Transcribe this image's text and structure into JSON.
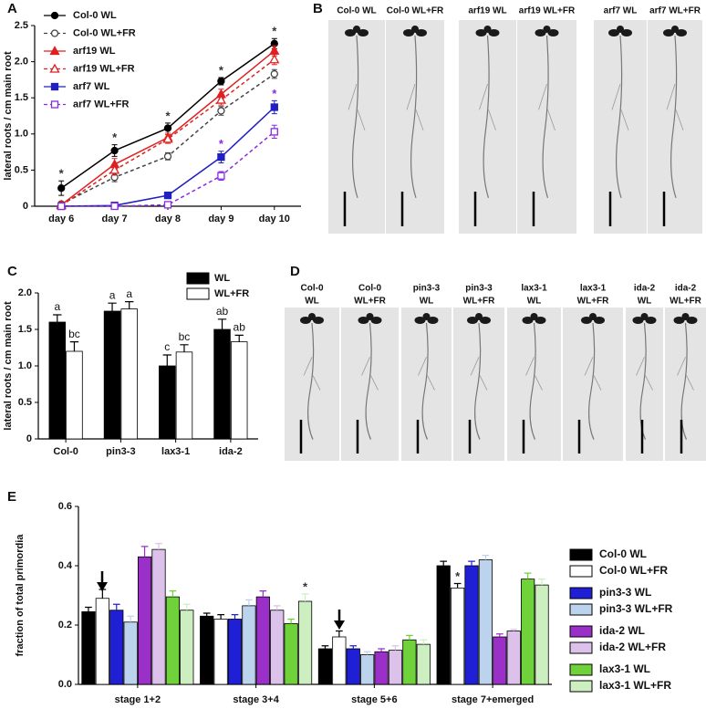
{
  "panel_labels": [
    "A",
    "B",
    "C",
    "D",
    "E"
  ],
  "photo_labels_B": [
    "Col-0 WL",
    "Col-0 WL+FR",
    "arf19 WL",
    "arf19 WL+FR",
    "arf7 WL",
    "arf7 WL+FR"
  ],
  "photo_labels_D": [
    [
      "Col-0",
      "WL"
    ],
    [
      "Col-0",
      "WL+FR"
    ],
    [
      "pin3-3",
      "WL"
    ],
    [
      "pin3-3",
      "WL+FR"
    ],
    [
      "lax3-1",
      "WL"
    ],
    [
      "lax3-1",
      "WL+FR"
    ],
    [
      "ida-2",
      "WL"
    ],
    [
      "ida-2",
      "WL+FR"
    ]
  ],
  "chart_data": [
    {
      "type": "line",
      "y_label": "lateral roots / cm main root",
      "legend": "upper left",
      "categories": [
        "day 6",
        "day 7",
        "day 8",
        "day 9",
        "day 10"
      ],
      "ylim": [
        0,
        2.5
      ],
      "yticks": [
        0,
        0.5,
        {
          "value": 1,
          "label": "1.0"
        },
        1.5,
        {
          "value": 2,
          "label": "2.0"
        },
        2.5
      ],
      "series": [
        {
          "name": "Col-0 WL",
          "color": "#000000",
          "marker": "circle",
          "filled": true,
          "dashed": false,
          "values": [
            0.25,
            0.77,
            1.08,
            1.73,
            2.25
          ],
          "errors": [
            0.1,
            0.08,
            0.07,
            0.05,
            0.07
          ]
        },
        {
          "name": "Col-0 WL+FR",
          "color": "#444444",
          "marker": "circle",
          "filled": false,
          "dashed": true,
          "values": [
            0.03,
            0.4,
            0.69,
            1.32,
            1.83
          ],
          "errors": [
            0.03,
            0.06,
            0.05,
            0.06,
            0.06
          ]
        },
        {
          "name": "arf19 WL",
          "color": "#e02020",
          "marker": "triangle",
          "filled": true,
          "dashed": false,
          "values": [
            0.02,
            0.58,
            0.95,
            1.55,
            2.15
          ],
          "errors": [
            0.02,
            0.08,
            0.06,
            0.07,
            0.07
          ]
        },
        {
          "name": "arf19 WL+FR",
          "color": "#e02020",
          "marker": "triangle",
          "filled": false,
          "dashed": true,
          "values": [
            0.01,
            0.5,
            0.93,
            1.47,
            2.03
          ],
          "errors": [
            0.01,
            0.07,
            0.06,
            0.07,
            0.07
          ]
        },
        {
          "name": "arf7 WL",
          "color": "#2020c0",
          "marker": "square",
          "filled": true,
          "dashed": false,
          "values": [
            0,
            0.01,
            0.15,
            0.68,
            1.37
          ],
          "errors": [
            0,
            0.01,
            0.03,
            0.08,
            0.09
          ]
        },
        {
          "name": "arf7 WL+FR",
          "color": "#8a2be2",
          "marker": "square",
          "filled": false,
          "dashed": true,
          "values": [
            0,
            0,
            0.02,
            0.42,
            1.03
          ],
          "errors": [
            0,
            0,
            0.01,
            0.06,
            0.09
          ]
        }
      ],
      "annotations": [
        {
          "x": "day 6",
          "series": "Col-0 WL",
          "text": "*",
          "color": "#333333"
        },
        {
          "x": "day 7",
          "series": "Col-0 WL",
          "text": "*",
          "color": "#333333"
        },
        {
          "x": "day 8",
          "series": "Col-0 WL",
          "text": "*",
          "color": "#333333"
        },
        {
          "x": "day 9",
          "series": "Col-0 WL",
          "text": "*",
          "color": "#333333"
        },
        {
          "x": "day 10",
          "series": "Col-0 WL",
          "text": "*",
          "color": "#333333"
        },
        {
          "x": "day 9",
          "series": "arf7 WL",
          "text": "*",
          "color": "#8a2be2"
        },
        {
          "x": "day 10",
          "series": "arf7 WL",
          "text": "*",
          "color": "#8a2be2"
        }
      ]
    },
    {
      "type": "bar",
      "y_label": "lateral roots / cm main root",
      "legend": "upper right",
      "categories": [
        "Col-0",
        "pin3-3",
        "lax3-1",
        "ida-2"
      ],
      "ylim": [
        0,
        2
      ],
      "yticks": [
        0,
        0.5,
        {
          "value": 1,
          "label": "1.0"
        },
        1.5,
        {
          "value": 2,
          "label": "2.0"
        }
      ],
      "series": [
        {
          "name": "WL",
          "color": "#000000",
          "values": [
            1.6,
            1.75,
            1.0,
            1.5
          ],
          "errors": [
            0.1,
            0.11,
            0.15,
            0.14
          ],
          "letters": [
            "a",
            "a",
            "c",
            "ab"
          ]
        },
        {
          "name": "WL+FR",
          "color": "#ffffff",
          "values": [
            1.2,
            1.78,
            1.19,
            1.33
          ],
          "errors": [
            0.13,
            0.1,
            0.1,
            0.09
          ],
          "letters": [
            "bc",
            "a",
            "bc",
            "ab"
          ]
        }
      ]
    },
    {
      "type": "bar",
      "y_label": "fraction of total primordia",
      "legend": "right",
      "categories": [
        "stage 1+2",
        "stage 3+4",
        "stage 5+6",
        "stage 7+emerged"
      ],
      "ylim": [
        0,
        0.6
      ],
      "yticks": [
        {
          "value": 0,
          "label": "0.0"
        },
        0.2,
        0.4,
        0.6
      ],
      "series": [
        {
          "name": "Col-0 WL",
          "color": "#000000",
          "values": [
            0.245,
            0.23,
            0.12,
            0.4
          ],
          "errors": [
            0.015,
            0.01,
            0.01,
            0.015
          ]
        },
        {
          "name": "Col-0 WL+FR",
          "color": "#ffffff",
          "values": [
            0.29,
            0.22,
            0.16,
            0.325
          ],
          "errors": [
            0.03,
            0.015,
            0.02,
            0.015
          ]
        },
        {
          "name": "pin3-3 WL",
          "color": "#1f1fd6",
          "values": [
            0.25,
            0.22,
            0.12,
            0.4
          ],
          "errors": [
            0.02,
            0.015,
            0.01,
            0.015
          ]
        },
        {
          "name": "pin3-3 WL+FR",
          "color": "#bcd3ee",
          "values": [
            0.21,
            0.265,
            0.1,
            0.42
          ],
          "errors": [
            0.02,
            0.02,
            0.01,
            0.015
          ]
        },
        {
          "name": "ida-2 WL",
          "color": "#9b30c8",
          "values": [
            0.43,
            0.295,
            0.11,
            0.16
          ],
          "errors": [
            0.035,
            0.02,
            0.01,
            0.01
          ]
        },
        {
          "name": "ida-2 WL+FR",
          "color": "#dcc2ea",
          "values": [
            0.455,
            0.25,
            0.115,
            0.18
          ],
          "errors": [
            0.02,
            0.015,
            0.015,
            0.005
          ]
        },
        {
          "name": "lax3-1 WL",
          "color": "#6fd23a",
          "values": [
            0.295,
            0.205,
            0.15,
            0.355
          ],
          "errors": [
            0.02,
            0.015,
            0.015,
            0.02
          ]
        },
        {
          "name": "lax3-1 WL+FR",
          "color": "#cdeec0",
          "values": [
            0.25,
            0.28,
            0.135,
            0.335
          ],
          "errors": [
            0.02,
            0.025,
            0.015,
            0.02
          ]
        }
      ],
      "annotations": [
        {
          "x": "stage 3+4",
          "series": "lax3-1 WL+FR",
          "text": "*",
          "color": "#333333"
        },
        {
          "x": "stage 7+emerged",
          "series": "Col-0 WL+FR",
          "text": "*",
          "color": "#333333"
        }
      ]
    }
  ]
}
